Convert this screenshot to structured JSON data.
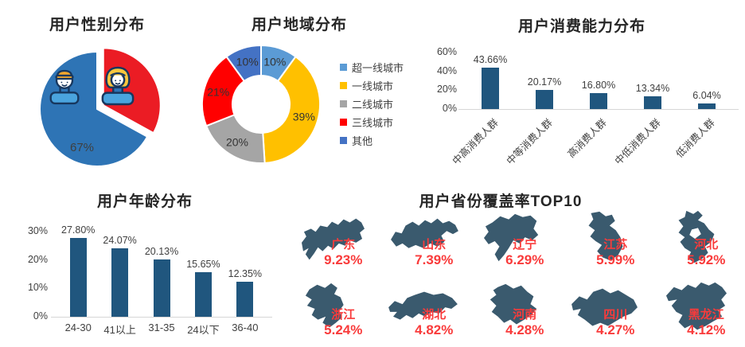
{
  "page": {
    "background": "#ffffff"
  },
  "colors": {
    "bar": "#20567E",
    "map_shape": "#3A5A6E",
    "map_label": "#F93B3B",
    "title": "#262626",
    "axis_text": "#404040",
    "pie_label": "#3F3F3F"
  },
  "chart_data": [
    {
      "id": "gender",
      "type": "pie",
      "title": "用户性别分布",
      "slices": [
        {
          "name": "male",
          "value": 67,
          "label": "67%",
          "color": "#2E74B5"
        },
        {
          "name": "female",
          "value": 33,
          "label": "",
          "color": "#EB1C24",
          "exploded": true
        }
      ],
      "legend_position": "none"
    },
    {
      "id": "region",
      "type": "pie",
      "subtype": "donut",
      "title": "用户地域分布",
      "legend_position": "right",
      "slices": [
        {
          "name": "超一线城市",
          "value": 10,
          "label": "10%",
          "color": "#5B9BD5"
        },
        {
          "name": "一线城市",
          "value": 39,
          "label": "39%",
          "color": "#FFC000"
        },
        {
          "name": "二线城市",
          "value": 20,
          "label": "20%",
          "color": "#A5A5A5"
        },
        {
          "name": "三线城市",
          "value": 21,
          "label": "21%",
          "color": "#FF0000"
        },
        {
          "name": "其他",
          "value": 10,
          "label": "10%",
          "color": "#4472C4"
        }
      ]
    },
    {
      "id": "consumption",
      "type": "bar",
      "title": "用户消费能力分布",
      "categories": [
        "中高消费人群",
        "中等消费人群",
        "高消费人群",
        "中低消费人群",
        "低消费人群"
      ],
      "values": [
        43.66,
        20.17,
        16.8,
        13.34,
        6.04
      ],
      "value_labels": [
        "43.66%",
        "20.17%",
        "16.80%",
        "13.34%",
        "6.04%"
      ],
      "ylim": [
        0,
        60
      ],
      "yticks": [
        {
          "v": 0,
          "label": "0%"
        },
        {
          "v": 20,
          "label": "20%"
        },
        {
          "v": 40,
          "label": "40%"
        },
        {
          "v": 60,
          "label": "60%"
        }
      ],
      "xlabel": "",
      "ylabel": "",
      "grid": false,
      "bar_color": "#20567E"
    },
    {
      "id": "age",
      "type": "bar",
      "title": "用户年龄分布",
      "categories": [
        "24-30",
        "41以上",
        "31-35",
        "24以下",
        "36-40"
      ],
      "values": [
        27.8,
        24.07,
        20.13,
        15.65,
        12.35
      ],
      "value_labels": [
        "27.80%",
        "24.07%",
        "20.13%",
        "15.65%",
        "12.35%"
      ],
      "ylim": [
        0,
        30
      ],
      "yticks": [
        {
          "v": 0,
          "label": "0%"
        },
        {
          "v": 10,
          "label": "10%"
        },
        {
          "v": 20,
          "label": "20%"
        },
        {
          "v": 30,
          "label": "30%"
        }
      ],
      "xlabel": "",
      "ylabel": "",
      "grid": false,
      "bar_color": "#20567E"
    },
    {
      "id": "provinces",
      "type": "map",
      "title": "用户省份覆盖率TOP10",
      "items": [
        {
          "name": "广东",
          "value": 9.23,
          "label": "9.23%"
        },
        {
          "name": "山东",
          "value": 7.39,
          "label": "7.39%"
        },
        {
          "name": "辽宁",
          "value": 6.29,
          "label": "6.29%"
        },
        {
          "name": "江苏",
          "value": 5.99,
          "label": "5.99%"
        },
        {
          "name": "河北",
          "value": 5.92,
          "label": "5.92%"
        },
        {
          "name": "浙江",
          "value": 5.24,
          "label": "5.24%"
        },
        {
          "name": "湖北",
          "value": 4.82,
          "label": "4.82%"
        },
        {
          "name": "河南",
          "value": 4.28,
          "label": "4.28%"
        },
        {
          "name": "四川",
          "value": 4.27,
          "label": "4.27%"
        },
        {
          "name": "黑龙江",
          "value": 4.12,
          "label": "4.12%"
        }
      ]
    }
  ]
}
